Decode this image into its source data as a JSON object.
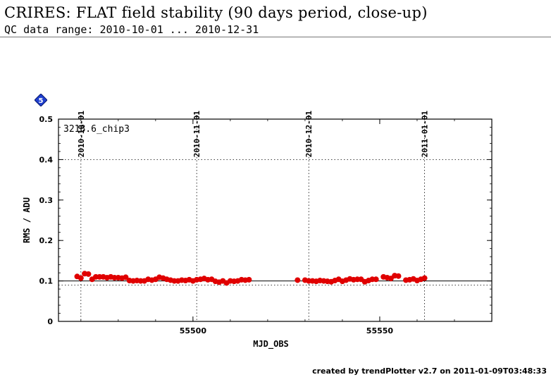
{
  "header": {
    "title": "CRIRES: FLAT field stability (90 days period, close-up)",
    "subtitle": "QC data range: 2010-10-01 ... 2010-12-31"
  },
  "badge": {
    "label": "5",
    "color": "#1f3fcf"
  },
  "footer": {
    "text": "created by trendPlotter v2.7 on 2011-01-09T03:48:33"
  },
  "chart_data": {
    "type": "scatter",
    "panel_label": "3218.6_chip3",
    "xlabel": "MJD_OBS",
    "ylabel": "RMS / ADU",
    "xlim": [
      55464,
      55580
    ],
    "ylim": [
      0,
      0.5
    ],
    "x_ticks": [
      55500,
      55550
    ],
    "x_ticks_labels": [
      "55500",
      "55550"
    ],
    "y_ticks": [
      0,
      0.1,
      0.2,
      0.3,
      0.4,
      0.5
    ],
    "y_ticks_labels": [
      "0",
      "0.1",
      "0.2",
      "0.3",
      "0.4",
      "0.5"
    ],
    "top_date_ticks": [
      {
        "x": 55470,
        "label": "2010-10-01"
      },
      {
        "x": 55501,
        "label": "2010-11-01"
      },
      {
        "x": 55531,
        "label": "2010-12-01"
      },
      {
        "x": 55562,
        "label": "2011-01-01"
      }
    ],
    "reference_line": 0.1,
    "threshold_lines": [
      0.09,
      0.4
    ],
    "marker_color": "#e00000",
    "points": [
      [
        55469,
        0.111
      ],
      [
        55470,
        0.107
      ],
      [
        55471,
        0.118
      ],
      [
        55472,
        0.117
      ],
      [
        55473,
        0.104
      ],
      [
        55474,
        0.11
      ],
      [
        55475,
        0.11
      ],
      [
        55476,
        0.11
      ],
      [
        55477,
        0.108
      ],
      [
        55478,
        0.11
      ],
      [
        55479,
        0.108
      ],
      [
        55480,
        0.108
      ],
      [
        55481,
        0.107
      ],
      [
        55482,
        0.109
      ],
      [
        55483,
        0.101
      ],
      [
        55484,
        0.1
      ],
      [
        55485,
        0.101
      ],
      [
        55486,
        0.1
      ],
      [
        55487,
        0.1
      ],
      [
        55488,
        0.104
      ],
      [
        55489,
        0.102
      ],
      [
        55490,
        0.104
      ],
      [
        55491,
        0.109
      ],
      [
        55492,
        0.107
      ],
      [
        55493,
        0.104
      ],
      [
        55494,
        0.102
      ],
      [
        55495,
        0.1
      ],
      [
        55496,
        0.1
      ],
      [
        55497,
        0.102
      ],
      [
        55498,
        0.101
      ],
      [
        55499,
        0.103
      ],
      [
        55500,
        0.1
      ],
      [
        55501,
        0.103
      ],
      [
        55502,
        0.104
      ],
      [
        55503,
        0.106
      ],
      [
        55504,
        0.103
      ],
      [
        55505,
        0.104
      ],
      [
        55506,
        0.099
      ],
      [
        55507,
        0.097
      ],
      [
        55508,
        0.1
      ],
      [
        55509,
        0.095
      ],
      [
        55510,
        0.1
      ],
      [
        55511,
        0.099
      ],
      [
        55512,
        0.1
      ],
      [
        55513,
        0.103
      ],
      [
        55514,
        0.102
      ],
      [
        55515,
        0.103
      ],
      [
        55528,
        0.102
      ],
      [
        55530,
        0.102
      ],
      [
        55531,
        0.1
      ],
      [
        55532,
        0.1
      ],
      [
        55533,
        0.099
      ],
      [
        55534,
        0.101
      ],
      [
        55535,
        0.1
      ],
      [
        55536,
        0.099
      ],
      [
        55537,
        0.098
      ],
      [
        55538,
        0.101
      ],
      [
        55539,
        0.104
      ],
      [
        55540,
        0.099
      ],
      [
        55541,
        0.102
      ],
      [
        55542,
        0.105
      ],
      [
        55543,
        0.103
      ],
      [
        55544,
        0.104
      ],
      [
        55545,
        0.104
      ],
      [
        55546,
        0.098
      ],
      [
        55547,
        0.101
      ],
      [
        55548,
        0.104
      ],
      [
        55549,
        0.104
      ],
      [
        55551,
        0.11
      ],
      [
        55552,
        0.108
      ],
      [
        55553,
        0.106
      ],
      [
        55554,
        0.113
      ],
      [
        55555,
        0.112
      ],
      [
        55557,
        0.102
      ],
      [
        55558,
        0.103
      ],
      [
        55559,
        0.105
      ],
      [
        55560,
        0.101
      ],
      [
        55561,
        0.104
      ],
      [
        55562,
        0.107
      ]
    ]
  }
}
